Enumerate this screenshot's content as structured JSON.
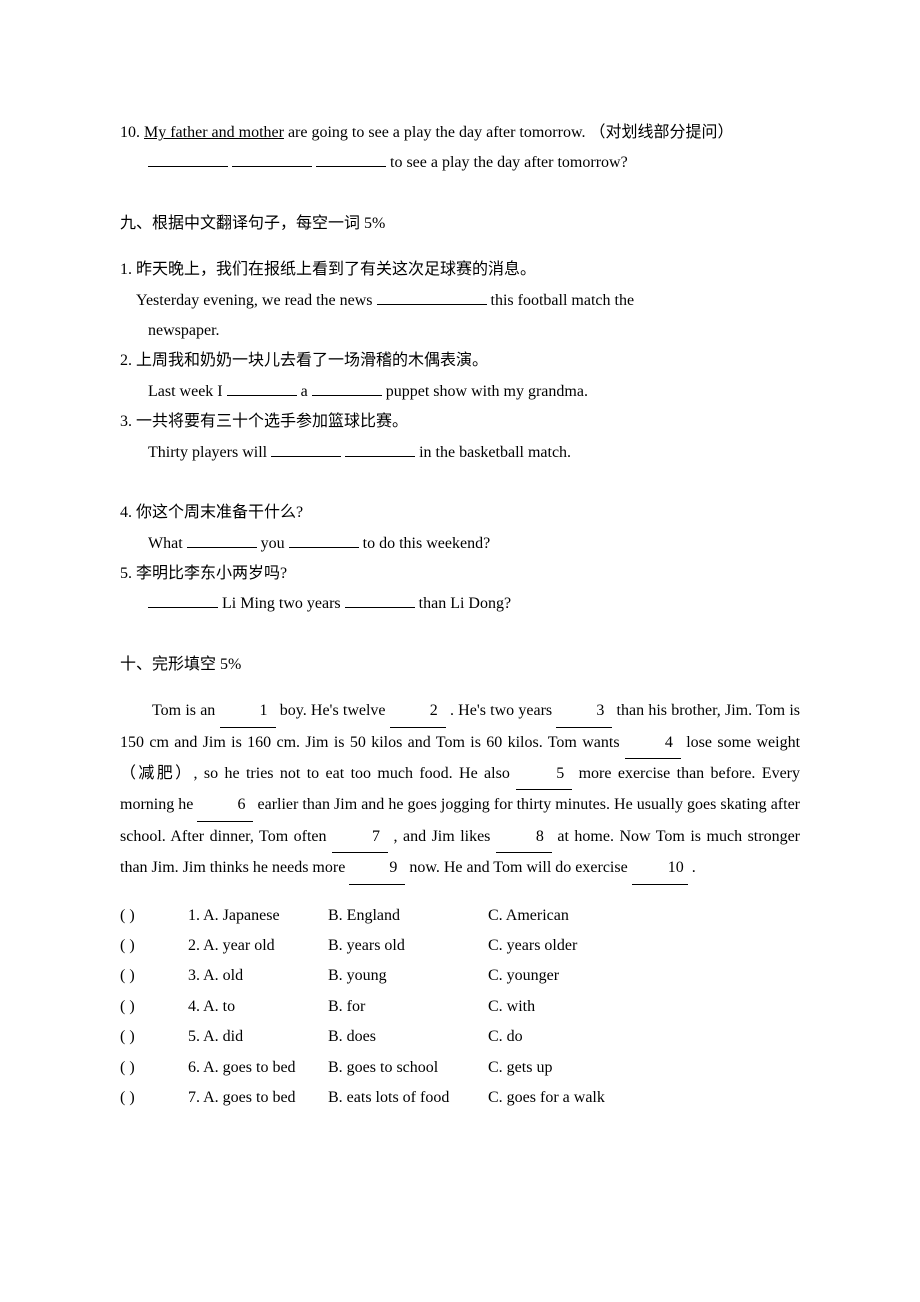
{
  "q10": {
    "number": "10.",
    "text_pre": "My father and mother",
    "text_post": " are going to see a play the day after tomorrow. ",
    "note": "（对划线部分提问）",
    "answer_tail": " to see a play the day after tomorrow?"
  },
  "section9": {
    "title": "九、根据中文翻译句子，每空一词   5%",
    "items": [
      {
        "num": "1.",
        "zh": "昨天晚上，我们在报纸上看到了有关这次足球赛的消息。",
        "en_pre": "Yesterday  evening,  we  read  the  news  ",
        "en_post": "  this  football  match      the",
        "en_line2": "newspaper."
      },
      {
        "num": "2.",
        "zh": "上周我和奶奶一块儿去看了一场滑稽的木偶表演。",
        "en_pre": "Last week I ",
        "en_mid": "  a  ",
        "en_post": "  puppet show with my grandma."
      },
      {
        "num": "3.",
        "zh": "一共将要有三十个选手参加篮球比赛。",
        "en_pre": "Thirty players will ",
        "en_mid": "  ",
        "en_post": "  in the basketball match."
      },
      {
        "num": "4.",
        "zh": "你这个周末准备干什么?",
        "en_pre": "What  ",
        "en_mid": "  you  ",
        "en_post": "  to do this weekend?"
      },
      {
        "num": "5.",
        "zh": "李明比李东小两岁吗?",
        "en_pre": "",
        "en_mid": " Li Ming two years ",
        "en_post": "  than Li Dong?"
      }
    ]
  },
  "section10": {
    "title": "十、完形填空   5%",
    "passage_parts": [
      "Tom is an ",
      " boy. He's twelve ",
      " . He's two years ",
      " than his brother, Jim. Tom is 150 cm and Jim is 160 cm. Jim is 50 kilos and Tom is 60 kilos. Tom wants ",
      " lose some weight（减肥）, so he tries not to eat too much food. He also ",
      " more exercise than before. Every morning he ",
      " earlier than Jim and he goes jogging for thirty minutes. He usually goes skating after school. After dinner, Tom often ",
      " , and Jim likes ",
      " at home. Now Tom is much stronger than Jim. Jim thinks he needs more ",
      " now. He and Tom will do exercise ",
      " ."
    ],
    "blank_labels": [
      "1",
      "2",
      "3",
      "4",
      "5",
      "6",
      "7",
      "8",
      "9",
      "10"
    ],
    "options": [
      {
        "num": "1",
        "A": "A. Japanese",
        "B": "B. England",
        "C": "C. American"
      },
      {
        "num": "2",
        "A": "A. year old",
        "B": "B. years old",
        "C": "C. years older"
      },
      {
        "num": "3",
        "A": "A. old",
        "B": "B. young",
        "C": "C. younger"
      },
      {
        "num": "4",
        "A": "A. to",
        "B": "B. for",
        "C": "C. with"
      },
      {
        "num": "5",
        "A": "A. did",
        "B": "B. does",
        "C": "C. do"
      },
      {
        "num": "6",
        "A": "A. goes to bed",
        "B": "B. goes to school",
        "C": "C. gets up"
      },
      {
        "num": "7",
        "A": "A. goes to bed",
        "B": "B. eats lots of food",
        "C": "C. goes for a walk"
      }
    ]
  },
  "colors": {
    "text": "#000000",
    "background": "#ffffff"
  },
  "fonts": {
    "body_family": "Times New Roman / SimSun",
    "body_size_pt": 12,
    "line_height": 1.9
  }
}
